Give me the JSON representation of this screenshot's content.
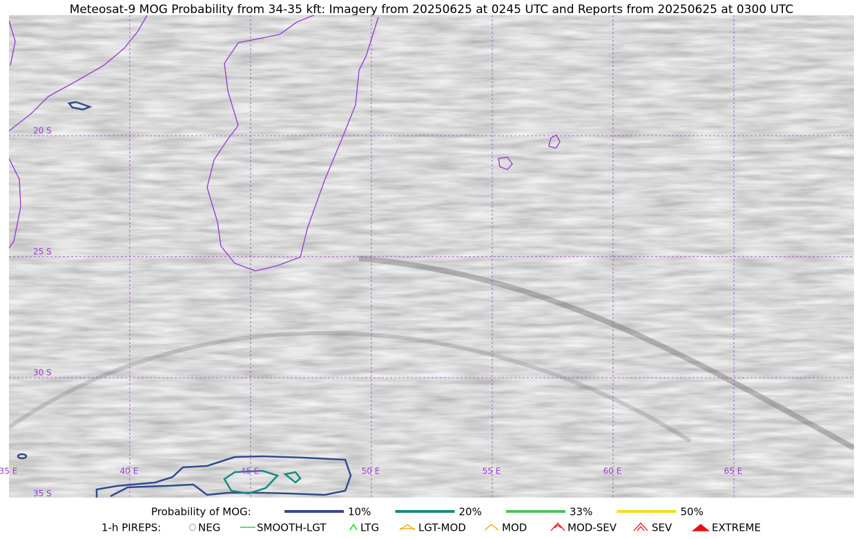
{
  "title": "Meteosat-9 MOG Probability from 34-35 kft: Imagery from 20250625 at 0245 UTC and Reports from 20250625 at 0300 UTC",
  "map": {
    "lat_labels": [
      "20 S",
      "25 S",
      "30 S",
      "35 S"
    ],
    "lon_labels": [
      "35 E",
      "40 E",
      "45 E",
      "50 E",
      "55 E",
      "60 E",
      "65 E"
    ]
  },
  "legend": {
    "mog_label": "Probability of MOG:",
    "mog": [
      {
        "label": "10%",
        "color": "#2f4b8c"
      },
      {
        "label": "20%",
        "color": "#168a80"
      },
      {
        "label": "33%",
        "color": "#4cc35a"
      },
      {
        "label": "50%",
        "color": "#f5dc1a"
      }
    ],
    "pirep_label": "1-h PIREPS:",
    "pireps": [
      {
        "label": "NEG",
        "color": "#b8b8f0"
      },
      {
        "label": "SMOOTH-LGT",
        "color": "#33cc33"
      },
      {
        "label": "LTG",
        "color": "#11dd11"
      },
      {
        "label": "LGT-MOD",
        "color": "#f0b020"
      },
      {
        "label": "MOD",
        "color": "#f0b020"
      },
      {
        "label": "MOD-SEV",
        "color": "#e83030"
      },
      {
        "label": "SEV",
        "color": "#e83030"
      },
      {
        "label": "EXTREME",
        "color": "#e81010"
      }
    ]
  }
}
